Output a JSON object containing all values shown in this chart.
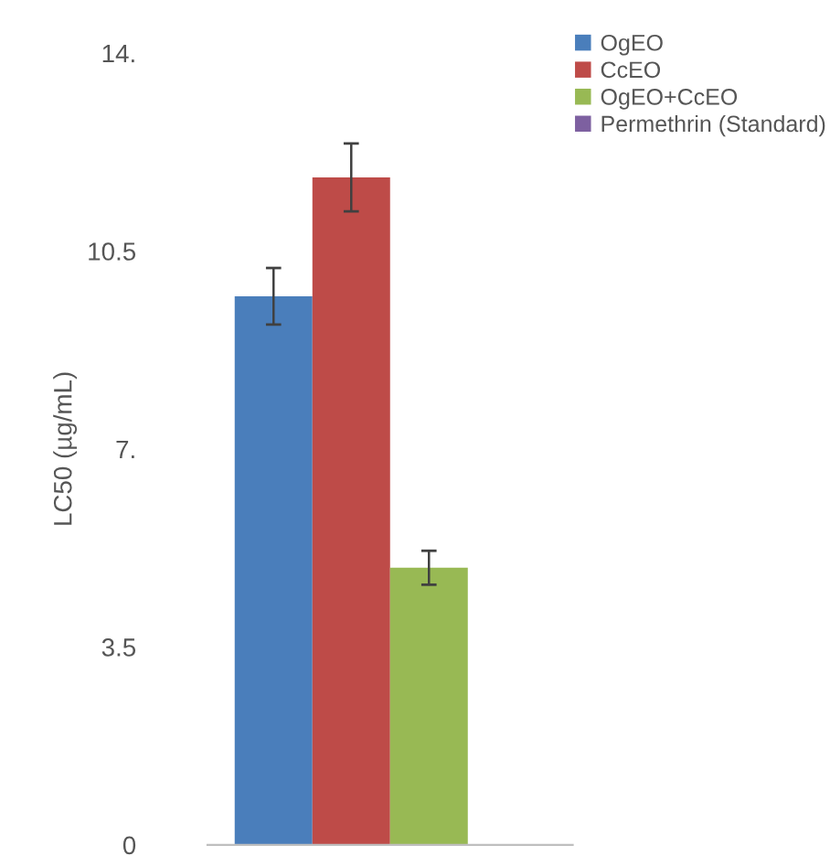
{
  "chart_data": {
    "type": "bar",
    "ylabel": "LC50 (µg/mL)",
    "categories": [
      null
    ],
    "series": [
      {
        "name": "OgEO",
        "color": "#4a7ebb",
        "values": [
          9.7
        ],
        "errors": [
          0.5
        ]
      },
      {
        "name": "CcEO",
        "color": "#be4b48",
        "values": [
          11.8
        ],
        "errors": [
          0.6
        ]
      },
      {
        "name": "OgEO+CcEO",
        "color": "#98b954",
        "values": [
          4.9
        ],
        "errors": [
          0.3
        ]
      },
      {
        "name": "Permethrin (Standard)",
        "color": "#7d60a0",
        "values": [
          null
        ]
      }
    ],
    "ylim": [
      0,
      14
    ],
    "yticks": [
      {
        "value": 0,
        "label": "0"
      },
      {
        "value": 3.5,
        "label": "3.5"
      },
      {
        "value": 7,
        "label": "7."
      },
      {
        "value": 10.5,
        "label": "10.5"
      },
      {
        "value": 14,
        "label": "14."
      }
    ],
    "grid": false,
    "legend": "top right"
  }
}
